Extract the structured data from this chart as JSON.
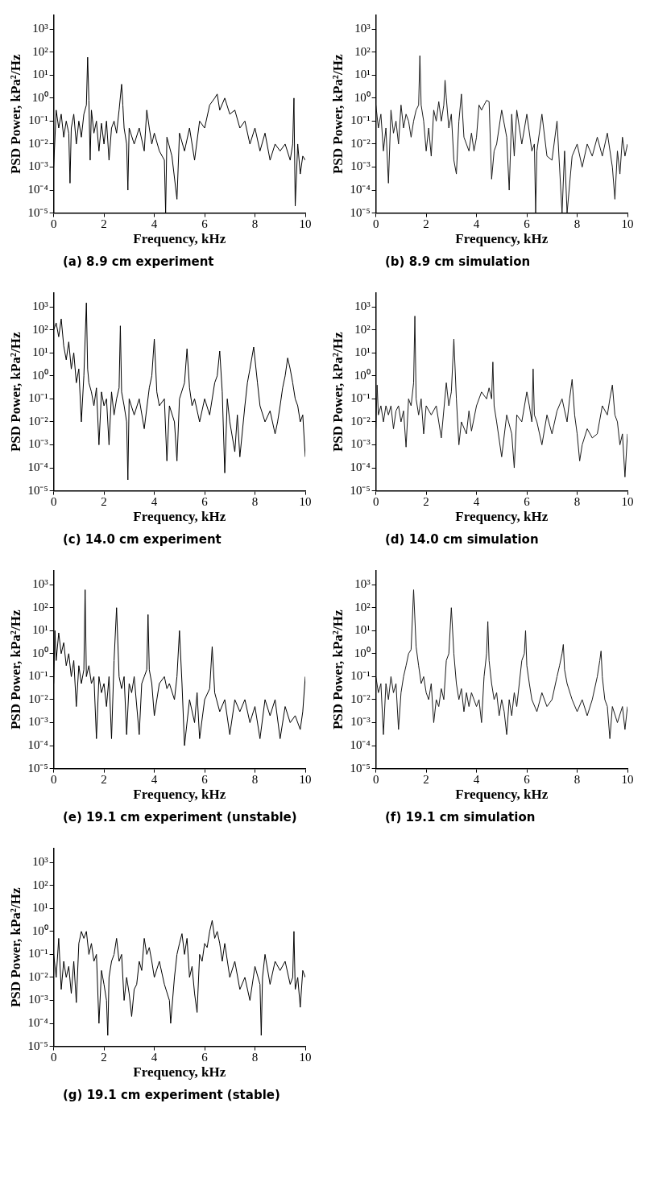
{
  "chart_data": [
    {
      "type": "line",
      "title": "(a) 8.9 cm experiment",
      "xlabel": "Frequency, kHz",
      "ylabel": "PSD Power, kPa²/Hz",
      "color": "#000000",
      "log": "y",
      "grid": false,
      "xlim": [
        0,
        10
      ],
      "xticks": [
        0,
        2,
        4,
        6,
        8,
        10
      ],
      "ylim": [
        1e-05,
        4000
      ],
      "yticks": [
        {
          "value": 1e-05,
          "label": "10⁻⁵"
        },
        {
          "value": 0.0001,
          "label": "10⁻⁴"
        },
        {
          "value": 0.001,
          "label": "10⁻³"
        },
        {
          "value": 0.01,
          "label": "10⁻²"
        },
        {
          "value": 0.1,
          "label": "10⁻¹"
        },
        {
          "value": 1,
          "label": "10⁰"
        },
        {
          "value": 10,
          "label": "10¹"
        },
        {
          "value": 100,
          "label": "10²"
        },
        {
          "value": 1000,
          "label": "10³"
        }
      ],
      "x": [
        0,
        0.1,
        0.2,
        0.3,
        0.4,
        0.5,
        0.6,
        0.65,
        0.7,
        0.8,
        0.9,
        1.0,
        1.1,
        1.2,
        1.3,
        1.35,
        1.4,
        1.45,
        1.5,
        1.6,
        1.7,
        1.8,
        1.9,
        2.0,
        2.1,
        2.2,
        2.3,
        2.4,
        2.5,
        2.6,
        2.7,
        2.75,
        2.8,
        2.9,
        2.95,
        3.0,
        3.2,
        3.4,
        3.6,
        3.7,
        3.8,
        3.9,
        4.0,
        4.2,
        4.4,
        4.45,
        4.5,
        4.7,
        4.9,
        5.0,
        5.2,
        5.4,
        5.6,
        5.8,
        6.0,
        6.2,
        6.4,
        6.5,
        6.6,
        6.8,
        7.0,
        7.2,
        7.4,
        7.6,
        7.8,
        8.0,
        8.2,
        8.4,
        8.6,
        8.8,
        9.0,
        9.2,
        9.4,
        9.5,
        9.55,
        9.6,
        9.7,
        9.8,
        9.9,
        10
      ],
      "values": [
        0.001,
        0.3,
        0.05,
        0.2,
        0.02,
        0.1,
        0.03,
        0.0002,
        0.05,
        0.2,
        0.01,
        0.1,
        0.02,
        0.2,
        0.5,
        60,
        0.8,
        0.002,
        0.3,
        0.03,
        0.1,
        0.005,
        0.08,
        0.01,
        0.1,
        0.002,
        0.05,
        0.1,
        0.03,
        0.3,
        4,
        0.5,
        0.05,
        0.01,
        0.0001,
        0.05,
        0.01,
        0.05,
        0.005,
        0.3,
        0.05,
        0.01,
        0.03,
        0.005,
        0.002,
        1e-05,
        0.02,
        0.003,
        4e-05,
        0.03,
        0.005,
        0.05,
        0.002,
        0.1,
        0.05,
        0.5,
        1,
        1.5,
        0.3,
        1,
        0.2,
        0.3,
        0.05,
        0.1,
        0.01,
        0.05,
        0.005,
        0.03,
        0.002,
        0.01,
        0.005,
        0.01,
        0.002,
        0.01,
        1,
        2e-05,
        0.01,
        0.0005,
        0.003,
        0.002
      ]
    },
    {
      "type": "line",
      "title": "(b) 8.9 cm simulation",
      "xlabel": "Frequency, kHz",
      "ylabel": "PSD Power, kPa²/Hz",
      "color": "#1a1a1a",
      "log": "y",
      "grid": false,
      "xlim": [
        0,
        10
      ],
      "xticks": [
        0,
        2,
        4,
        6,
        8,
        10
      ],
      "ylim": [
        1e-05,
        4000
      ],
      "yticks": [
        {
          "value": 1e-05,
          "label": "10⁻⁵"
        },
        {
          "value": 0.0001,
          "label": "10⁻⁴"
        },
        {
          "value": 0.001,
          "label": "10⁻³"
        },
        {
          "value": 0.01,
          "label": "10⁻²"
        },
        {
          "value": 0.1,
          "label": "10⁻¹"
        },
        {
          "value": 1,
          "label": "10⁰"
        },
        {
          "value": 10,
          "label": "10¹"
        },
        {
          "value": 100,
          "label": "10²"
        },
        {
          "value": 1000,
          "label": "10³"
        }
      ],
      "x": [
        0,
        0.1,
        0.2,
        0.3,
        0.4,
        0.5,
        0.6,
        0.7,
        0.8,
        0.9,
        1.0,
        1.1,
        1.2,
        1.3,
        1.4,
        1.5,
        1.6,
        1.7,
        1.75,
        1.8,
        1.9,
        2.0,
        2.1,
        2.2,
        2.3,
        2.4,
        2.5,
        2.6,
        2.7,
        2.75,
        2.8,
        2.9,
        3.0,
        3.1,
        3.2,
        3.3,
        3.4,
        3.5,
        3.6,
        3.7,
        3.8,
        3.9,
        4.0,
        4.1,
        4.2,
        4.3,
        4.4,
        4.5,
        4.6,
        4.7,
        4.8,
        5.0,
        5.2,
        5.3,
        5.4,
        5.5,
        5.6,
        5.8,
        6.0,
        6.2,
        6.3,
        6.35,
        6.4,
        6.6,
        6.8,
        7.0,
        7.2,
        7.4,
        7.5,
        7.6,
        7.8,
        8.0,
        8.2,
        8.4,
        8.6,
        8.8,
        9.0,
        9.2,
        9.4,
        9.5,
        9.6,
        9.7,
        9.8,
        9.9,
        10
      ],
      "values": [
        0.5,
        0.05,
        0.2,
        0.005,
        0.05,
        0.0002,
        0.3,
        0.03,
        0.1,
        0.01,
        0.5,
        0.05,
        0.2,
        0.1,
        0.02,
        0.1,
        0.3,
        0.5,
        70,
        0.5,
        0.1,
        0.005,
        0.05,
        0.003,
        0.3,
        0.1,
        0.7,
        0.1,
        0.5,
        6,
        1,
        0.05,
        0.2,
        0.002,
        0.0005,
        0.1,
        1.5,
        0.02,
        0.01,
        0.005,
        0.03,
        0.005,
        0.02,
        0.5,
        0.3,
        0.5,
        0.8,
        0.7,
        0.0003,
        0.005,
        0.01,
        0.3,
        0.02,
        0.0001,
        0.2,
        0.003,
        0.3,
        0.01,
        0.2,
        0.005,
        0.01,
        1e-05,
        0.005,
        0.2,
        0.003,
        0.002,
        0.1,
        1e-05,
        0.005,
        1e-05,
        0.003,
        0.01,
        0.001,
        0.01,
        0.003,
        0.02,
        0.003,
        0.03,
        0.001,
        4e-05,
        0.005,
        0.0005,
        0.02,
        0.003,
        0.01
      ]
    },
    {
      "type": "line",
      "title": "(c) 14.0 cm experiment",
      "xlabel": "Frequency, kHz",
      "ylabel": "PSD Power, kPa²/Hz",
      "color": "#000000",
      "log": "y",
      "grid": false,
      "xlim": [
        0,
        10
      ],
      "xticks": [
        0,
        2,
        4,
        6,
        8,
        10
      ],
      "ylim": [
        1e-05,
        4000
      ],
      "yticks": [
        {
          "value": 1e-05,
          "label": "10⁻⁵"
        },
        {
          "value": 0.0001,
          "label": "10⁻⁴"
        },
        {
          "value": 0.001,
          "label": "10⁻³"
        },
        {
          "value": 0.01,
          "label": "10⁻²"
        },
        {
          "value": 0.1,
          "label": "10⁻¹"
        },
        {
          "value": 1,
          "label": "10⁰"
        },
        {
          "value": 10,
          "label": "10¹"
        },
        {
          "value": 100,
          "label": "10²"
        },
        {
          "value": 1000,
          "label": "10³"
        }
      ],
      "x": [
        0,
        0.1,
        0.2,
        0.3,
        0.4,
        0.5,
        0.6,
        0.7,
        0.8,
        0.9,
        1.0,
        1.1,
        1.2,
        1.3,
        1.35,
        1.4,
        1.5,
        1.6,
        1.7,
        1.8,
        1.9,
        2.0,
        2.1,
        2.2,
        2.3,
        2.4,
        2.5,
        2.6,
        2.65,
        2.7,
        2.8,
        2.9,
        2.95,
        3.0,
        3.2,
        3.4,
        3.6,
        3.8,
        3.9,
        4.0,
        4.1,
        4.2,
        4.4,
        4.5,
        4.6,
        4.8,
        4.9,
        5.0,
        5.2,
        5.3,
        5.4,
        5.5,
        5.6,
        5.8,
        6.0,
        6.2,
        6.4,
        6.5,
        6.6,
        6.7,
        6.8,
        6.9,
        7.0,
        7.2,
        7.3,
        7.4,
        7.6,
        7.7,
        7.8,
        7.95,
        8.1,
        8.2,
        8.4,
        8.6,
        8.8,
        8.9,
        9.0,
        9.1,
        9.2,
        9.3,
        9.4,
        9.5,
        9.6,
        9.7,
        9.8,
        9.9,
        10
      ],
      "values": [
        100,
        200,
        50,
        300,
        20,
        5,
        30,
        2,
        10,
        0.5,
        2,
        0.01,
        1,
        1500,
        2,
        0.5,
        0.2,
        0.05,
        0.3,
        0.001,
        0.2,
        0.05,
        0.1,
        0.001,
        0.2,
        0.02,
        0.1,
        0.3,
        150,
        0.2,
        0.05,
        0.01,
        3e-05,
        0.1,
        0.02,
        0.1,
        0.005,
        0.3,
        1,
        40,
        0.2,
        0.05,
        0.1,
        0.0002,
        0.05,
        0.01,
        0.0002,
        0.1,
        0.5,
        15,
        0.3,
        0.05,
        0.1,
        0.01,
        0.1,
        0.02,
        0.5,
        1,
        12,
        0.2,
        6e-05,
        0.1,
        0.01,
        0.0005,
        0.02,
        0.0003,
        0.05,
        0.5,
        2,
        18,
        0.5,
        0.05,
        0.01,
        0.03,
        0.003,
        0.01,
        0.05,
        0.3,
        1,
        6,
        2,
        0.5,
        0.1,
        0.05,
        0.01,
        0.02,
        0.0003
      ]
    },
    {
      "type": "line",
      "title": "(d) 14.0 cm simulation",
      "xlabel": "Frequency, kHz",
      "ylabel": "PSD Power, kPa²/Hz",
      "color": "#1a1a1a",
      "log": "y",
      "grid": false,
      "xlim": [
        0,
        10
      ],
      "xticks": [
        0,
        2,
        4,
        6,
        8,
        10
      ],
      "ylim": [
        1e-05,
        4000
      ],
      "yticks": [
        {
          "value": 1e-05,
          "label": "10⁻⁵"
        },
        {
          "value": 0.0001,
          "label": "10⁻⁴"
        },
        {
          "value": 0.001,
          "label": "10⁻³"
        },
        {
          "value": 0.01,
          "label": "10⁻²"
        },
        {
          "value": 0.1,
          "label": "10⁻¹"
        },
        {
          "value": 1,
          "label": "10⁰"
        },
        {
          "value": 10,
          "label": "10¹"
        },
        {
          "value": 100,
          "label": "10²"
        },
        {
          "value": 1000,
          "label": "10³"
        }
      ],
      "x": [
        0,
        0.05,
        0.1,
        0.2,
        0.3,
        0.4,
        0.5,
        0.6,
        0.7,
        0.8,
        0.9,
        1.0,
        1.1,
        1.2,
        1.3,
        1.4,
        1.5,
        1.55,
        1.6,
        1.7,
        1.8,
        1.9,
        2.0,
        2.2,
        2.4,
        2.6,
        2.8,
        2.9,
        3.0,
        3.1,
        3.2,
        3.3,
        3.4,
        3.6,
        3.7,
        3.8,
        4.0,
        4.2,
        4.4,
        4.5,
        4.6,
        4.65,
        4.7,
        4.8,
        5.0,
        5.2,
        5.4,
        5.5,
        5.6,
        5.8,
        6.0,
        6.1,
        6.2,
        6.25,
        6.3,
        6.4,
        6.6,
        6.8,
        7.0,
        7.2,
        7.4,
        7.6,
        7.7,
        7.8,
        7.9,
        8.0,
        8.1,
        8.2,
        8.4,
        8.6,
        8.8,
        9.0,
        9.2,
        9.3,
        9.4,
        9.5,
        9.6,
        9.7,
        9.8,
        9.9,
        10
      ],
      "values": [
        0.005,
        0.4,
        0.02,
        0.05,
        0.01,
        0.05,
        0.02,
        0.05,
        0.005,
        0.03,
        0.05,
        0.01,
        0.03,
        0.0008,
        0.1,
        0.05,
        0.5,
        400,
        0.1,
        0.02,
        0.1,
        0.003,
        0.05,
        0.02,
        0.05,
        0.002,
        0.5,
        0.05,
        0.2,
        40,
        0.1,
        0.001,
        0.01,
        0.003,
        0.03,
        0.004,
        0.05,
        0.2,
        0.1,
        0.3,
        0.1,
        4,
        0.05,
        0.01,
        0.0003,
        0.02,
        0.003,
        0.0001,
        0.02,
        0.01,
        0.2,
        0.05,
        0.01,
        2,
        0.02,
        0.01,
        0.001,
        0.02,
        0.003,
        0.03,
        0.1,
        0.01,
        0.1,
        0.7,
        0.02,
        0.003,
        0.0002,
        0.001,
        0.005,
        0.002,
        0.003,
        0.05,
        0.02,
        0.1,
        0.4,
        0.02,
        0.01,
        0.001,
        0.003,
        4e-05,
        0.003
      ]
    },
    {
      "type": "line",
      "title": "(e) 19.1 cm experiment (unstable)",
      "xlabel": "Frequency, kHz",
      "ylabel": "PSD Power, kPa²/Hz",
      "color": "#000000",
      "log": "y",
      "grid": false,
      "xlim": [
        0,
        10
      ],
      "xticks": [
        0,
        2,
        4,
        6,
        8,
        10
      ],
      "ylim": [
        1e-05,
        4000
      ],
      "yticks": [
        {
          "value": 1e-05,
          "label": "10⁻⁵"
        },
        {
          "value": 0.0001,
          "label": "10⁻⁴"
        },
        {
          "value": 0.001,
          "label": "10⁻³"
        },
        {
          "value": 0.01,
          "label": "10⁻²"
        },
        {
          "value": 0.1,
          "label": "10⁻¹"
        },
        {
          "value": 1,
          "label": "10⁰"
        },
        {
          "value": 10,
          "label": "10¹"
        },
        {
          "value": 100,
          "label": "10²"
        },
        {
          "value": 1000,
          "label": "10³"
        }
      ],
      "x": [
        0,
        0.05,
        0.1,
        0.2,
        0.3,
        0.4,
        0.5,
        0.6,
        0.7,
        0.8,
        0.9,
        1.0,
        1.1,
        1.2,
        1.25,
        1.3,
        1.4,
        1.5,
        1.6,
        1.7,
        1.8,
        1.9,
        2.0,
        2.1,
        2.2,
        2.3,
        2.4,
        2.5,
        2.6,
        2.7,
        2.8,
        2.9,
        3.0,
        3.1,
        3.2,
        3.4,
        3.5,
        3.6,
        3.7,
        3.75,
        3.8,
        3.9,
        4.0,
        4.2,
        4.4,
        4.5,
        4.6,
        4.8,
        4.9,
        5.0,
        5.1,
        5.2,
        5.4,
        5.6,
        5.7,
        5.8,
        6.0,
        6.2,
        6.3,
        6.4,
        6.6,
        6.8,
        7.0,
        7.2,
        7.4,
        7.6,
        7.8,
        8.0,
        8.2,
        8.4,
        8.6,
        8.8,
        9.0,
        9.2,
        9.4,
        9.6,
        9.8,
        9.9,
        10
      ],
      "values": [
        0.05,
        10,
        0.5,
        8,
        1,
        3,
        0.3,
        1,
        0.1,
        0.5,
        0.005,
        0.3,
        0.05,
        0.2,
        600,
        0.1,
        0.3,
        0.05,
        0.1,
        0.0002,
        0.1,
        0.02,
        0.05,
        0.005,
        0.1,
        0.0002,
        0.5,
        100,
        0.1,
        0.03,
        0.1,
        0.0003,
        0.05,
        0.02,
        0.1,
        0.0003,
        0.05,
        0.1,
        0.2,
        50,
        0.2,
        0.05,
        0.002,
        0.05,
        0.1,
        0.03,
        0.05,
        0.01,
        0.1,
        10,
        0.05,
        0.0001,
        0.01,
        0.001,
        0.02,
        0.0002,
        0.01,
        0.03,
        2,
        0.02,
        0.003,
        0.01,
        0.0003,
        0.01,
        0.003,
        0.01,
        0.001,
        0.005,
        0.0002,
        0.01,
        0.002,
        0.01,
        0.0002,
        0.005,
        0.001,
        0.002,
        0.0005,
        0.003,
        0.1
      ]
    },
    {
      "type": "line",
      "title": "(f) 19.1 cm simulation",
      "xlabel": "Frequency, kHz",
      "ylabel": "PSD Power, kPa²/Hz",
      "color": "#1a1a1a",
      "log": "y",
      "grid": false,
      "xlim": [
        0,
        10
      ],
      "xticks": [
        0,
        2,
        4,
        6,
        8,
        10
      ],
      "ylim": [
        1e-05,
        4000
      ],
      "yticks": [
        {
          "value": 1e-05,
          "label": "10⁻⁵"
        },
        {
          "value": 0.0001,
          "label": "10⁻⁴"
        },
        {
          "value": 0.001,
          "label": "10⁻³"
        },
        {
          "value": 0.01,
          "label": "10⁻²"
        },
        {
          "value": 0.1,
          "label": "10⁻¹"
        },
        {
          "value": 1,
          "label": "10⁰"
        },
        {
          "value": 10,
          "label": "10¹"
        },
        {
          "value": 100,
          "label": "10²"
        },
        {
          "value": 1000,
          "label": "10³"
        }
      ],
      "x": [
        0,
        0.1,
        0.2,
        0.3,
        0.4,
        0.5,
        0.6,
        0.7,
        0.8,
        0.9,
        1.0,
        1.1,
        1.2,
        1.3,
        1.4,
        1.5,
        1.6,
        1.7,
        1.8,
        1.9,
        2.0,
        2.1,
        2.2,
        2.3,
        2.4,
        2.5,
        2.6,
        2.7,
        2.8,
        2.9,
        3.0,
        3.1,
        3.2,
        3.3,
        3.4,
        3.5,
        3.6,
        3.7,
        3.8,
        3.9,
        4.0,
        4.1,
        4.2,
        4.3,
        4.4,
        4.45,
        4.5,
        4.6,
        4.7,
        4.8,
        4.9,
        5.0,
        5.1,
        5.2,
        5.3,
        5.4,
        5.5,
        5.6,
        5.7,
        5.8,
        5.9,
        5.95,
        6.0,
        6.1,
        6.2,
        6.4,
        6.6,
        6.8,
        7.0,
        7.2,
        7.3,
        7.4,
        7.45,
        7.5,
        7.6,
        7.8,
        8.0,
        8.2,
        8.4,
        8.6,
        8.8,
        8.9,
        8.95,
        9.0,
        9.1,
        9.2,
        9.3,
        9.4,
        9.6,
        9.8,
        9.9,
        10
      ],
      "values": [
        0.1,
        0.02,
        0.05,
        0.0003,
        0.05,
        0.01,
        0.1,
        0.02,
        0.05,
        0.0005,
        0.02,
        0.1,
        0.3,
        1,
        1.5,
        600,
        2,
        0.3,
        0.05,
        0.1,
        0.02,
        0.01,
        0.05,
        0.001,
        0.01,
        0.005,
        0.03,
        0.01,
        0.5,
        1,
        100,
        1,
        0.05,
        0.01,
        0.03,
        0.003,
        0.02,
        0.005,
        0.02,
        0.01,
        0.005,
        0.01,
        0.001,
        0.1,
        1,
        25,
        0.5,
        0.05,
        0.01,
        0.02,
        0.002,
        0.01,
        0.003,
        0.0003,
        0.01,
        0.002,
        0.02,
        0.005,
        0.05,
        0.5,
        1,
        10,
        0.3,
        0.05,
        0.01,
        0.003,
        0.02,
        0.005,
        0.01,
        0.1,
        0.3,
        1,
        2.5,
        0.2,
        0.05,
        0.01,
        0.003,
        0.01,
        0.002,
        0.01,
        0.1,
        0.5,
        1.3,
        0.1,
        0.01,
        0.005,
        0.0002,
        0.005,
        0.001,
        0.005,
        0.0005,
        0.005
      ]
    },
    {
      "type": "line",
      "title": "(g) 19.1 cm experiment (stable)",
      "xlabel": "Frequency, kHz",
      "ylabel": "PSD Power, kPa²/Hz",
      "color": "#000000",
      "log": "y",
      "grid": false,
      "xlim": [
        0,
        10
      ],
      "xticks": [
        0,
        2,
        4,
        6,
        8,
        10
      ],
      "ylim": [
        1e-05,
        4000
      ],
      "yticks": [
        {
          "value": 1e-05,
          "label": "10⁻⁵"
        },
        {
          "value": 0.0001,
          "label": "10⁻⁴"
        },
        {
          "value": 0.001,
          "label": "10⁻³"
        },
        {
          "value": 0.01,
          "label": "10⁻²"
        },
        {
          "value": 0.1,
          "label": "10⁻¹"
        },
        {
          "value": 1,
          "label": "10⁰"
        },
        {
          "value": 10,
          "label": "10¹"
        },
        {
          "value": 100,
          "label": "10²"
        },
        {
          "value": 1000,
          "label": "10³"
        }
      ],
      "x": [
        0,
        0.1,
        0.2,
        0.3,
        0.4,
        0.5,
        0.6,
        0.7,
        0.8,
        0.9,
        1.0,
        1.1,
        1.2,
        1.3,
        1.4,
        1.5,
        1.6,
        1.7,
        1.8,
        1.9,
        2.0,
        2.1,
        2.15,
        2.2,
        2.3,
        2.4,
        2.5,
        2.6,
        2.7,
        2.8,
        2.9,
        3.0,
        3.1,
        3.2,
        3.3,
        3.4,
        3.5,
        3.6,
        3.7,
        3.8,
        3.9,
        4.0,
        4.2,
        4.4,
        4.6,
        4.65,
        4.8,
        4.9,
        5.0,
        5.1,
        5.2,
        5.3,
        5.4,
        5.5,
        5.6,
        5.7,
        5.8,
        5.9,
        6.0,
        6.1,
        6.2,
        6.3,
        6.4,
        6.5,
        6.6,
        6.7,
        6.8,
        7.0,
        7.2,
        7.4,
        7.6,
        7.8,
        8.0,
        8.2,
        8.25,
        8.3,
        8.4,
        8.6,
        8.8,
        9.0,
        9.2,
        9.4,
        9.5,
        9.55,
        9.6,
        9.7,
        9.8,
        9.9,
        10
      ],
      "values": [
        0.1,
        0.01,
        0.5,
        0.003,
        0.05,
        0.01,
        0.03,
        0.002,
        0.05,
        0.0008,
        0.3,
        1,
        0.5,
        1,
        0.1,
        0.3,
        0.05,
        0.1,
        0.0001,
        0.02,
        0.005,
        0.001,
        3e-05,
        0.01,
        0.05,
        0.1,
        0.5,
        0.05,
        0.1,
        0.001,
        0.01,
        0.002,
        0.0002,
        0.003,
        0.005,
        0.05,
        0.02,
        0.5,
        0.1,
        0.2,
        0.05,
        0.01,
        0.05,
        0.005,
        0.001,
        0.0001,
        0.01,
        0.1,
        0.3,
        0.8,
        0.1,
        0.5,
        0.01,
        0.03,
        0.002,
        0.0003,
        0.1,
        0.05,
        0.3,
        0.2,
        1,
        3,
        0.5,
        1,
        0.3,
        0.05,
        0.3,
        0.01,
        0.05,
        0.003,
        0.01,
        0.001,
        0.03,
        0.005,
        3e-05,
        0.01,
        0.1,
        0.005,
        0.05,
        0.02,
        0.05,
        0.005,
        0.01,
        1,
        0.003,
        0.01,
        0.0005,
        0.02,
        0.01
      ]
    }
  ]
}
